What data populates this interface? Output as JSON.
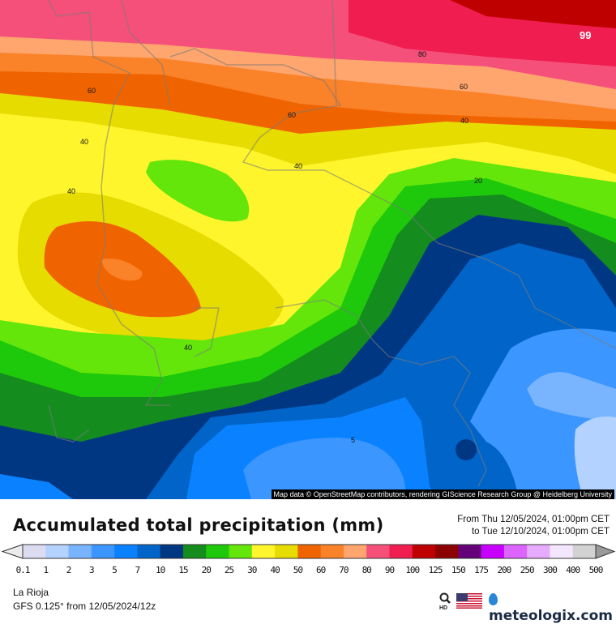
{
  "map": {
    "attribution": "Map data © OpenStreetMap contributors, rendering GIScience Research Group @ Heidelberg University",
    "contour_labels": [
      "99",
      "80",
      "60",
      "60",
      "60",
      "40",
      "40",
      "40",
      "40",
      "40",
      "20",
      "5"
    ]
  },
  "header": {
    "title": "Accumulated total precipitation (mm)",
    "from": "From Thu 12/05/2024, 01:00pm CET",
    "to": "to Tue 12/10/2024, 01:00pm CET"
  },
  "legend": {
    "labels": [
      "0.1",
      "1",
      "2",
      "3",
      "5",
      "7",
      "10",
      "15",
      "20",
      "25",
      "30",
      "40",
      "50",
      "60",
      "70",
      "80",
      "90",
      "100",
      "125",
      "150",
      "175",
      "200",
      "250",
      "300",
      "400",
      "500"
    ],
    "colors": [
      "#dcdcf0",
      "#b4d2ff",
      "#78b4ff",
      "#3c96ff",
      "#0a82ff",
      "#0064c8",
      "#003782",
      "#148c1e",
      "#1ec80a",
      "#64e60a",
      "#fff52d",
      "#e6dc00",
      "#f06400",
      "#fa8228",
      "#ffa56e",
      "#f4507a",
      "#f01e50",
      "#be0000",
      "#8c0000",
      "#640078",
      "#c800ff",
      "#dc64ff",
      "#e6aaff",
      "#f5e6ff",
      "#d2d2d2"
    ],
    "under_color": "#ebebeb",
    "over_color": "#999999"
  },
  "footer": {
    "region": "La Rioja",
    "model": "GFS 0.125° from  12/05/2024/12z",
    "hd_label": "HD",
    "brand": "meteologix.com"
  }
}
